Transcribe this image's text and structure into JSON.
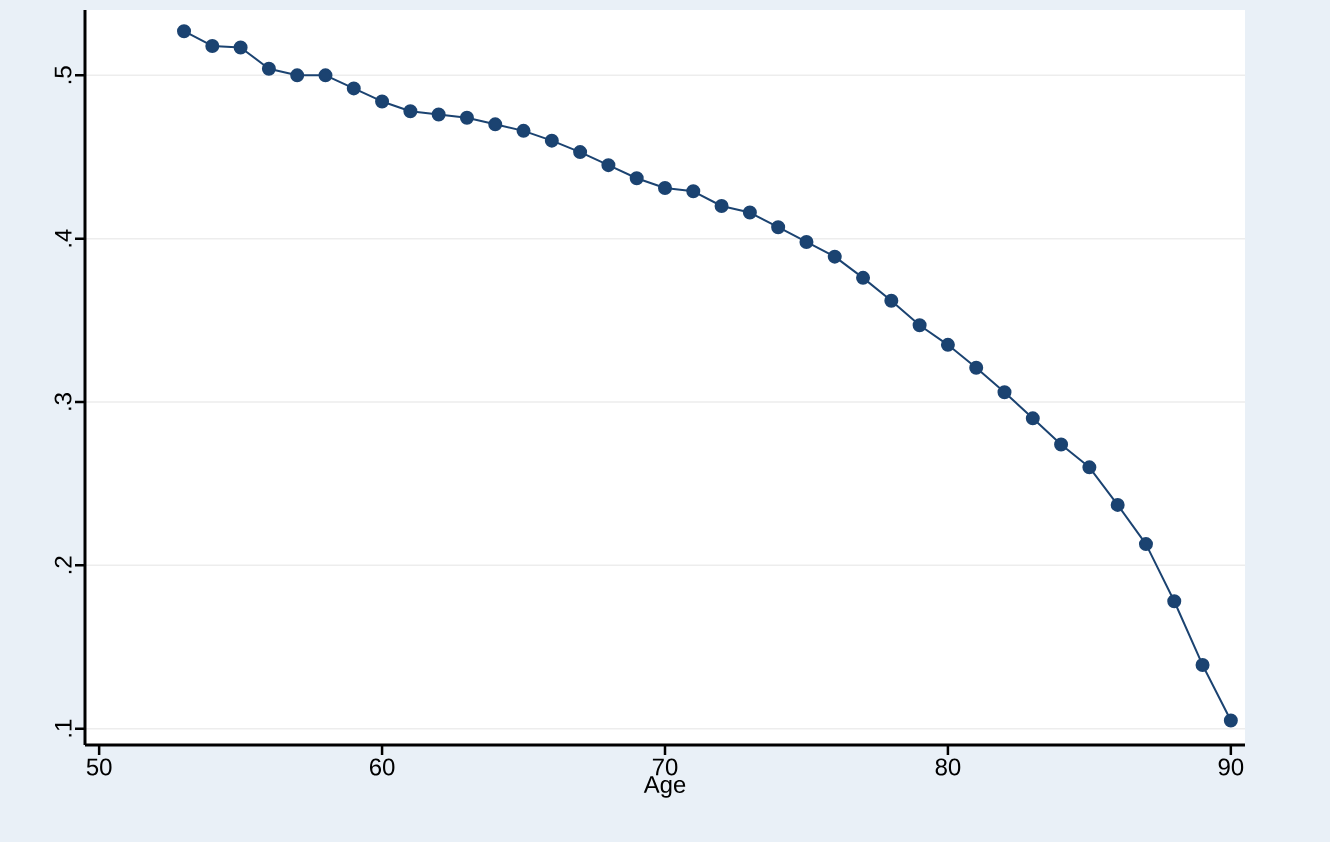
{
  "chart_data": {
    "type": "line",
    "xlabel": "Age",
    "x": [
      53,
      54,
      55,
      56,
      57,
      58,
      59,
      60,
      61,
      62,
      63,
      64,
      65,
      66,
      67,
      68,
      69,
      70,
      71,
      72,
      73,
      74,
      75,
      76,
      77,
      78,
      79,
      80,
      81,
      82,
      83,
      84,
      85,
      86,
      87,
      88,
      89,
      90
    ],
    "series": [
      {
        "color": "#1b4371",
        "values": [
          0.527,
          0.518,
          0.517,
          0.504,
          0.5,
          0.5,
          0.492,
          0.484,
          0.478,
          0.476,
          0.474,
          0.47,
          0.466,
          0.46,
          0.453,
          0.445,
          0.437,
          0.431,
          0.429,
          0.42,
          0.416,
          0.407,
          0.398,
          0.389,
          0.376,
          0.362,
          0.347,
          0.335,
          0.321,
          0.306,
          0.29,
          0.274,
          0.26,
          0.237,
          0.213,
          0.178,
          0.139,
          0.105
        ]
      }
    ],
    "xlim": [
      49.5,
      90.5
    ],
    "ylim": [
      0.09,
      0.54
    ],
    "xticks": [
      50,
      60,
      70,
      80,
      90
    ],
    "yticks": [
      {
        "value": 0.1,
        "label": ".1"
      },
      {
        "value": 0.2,
        "label": ".2"
      },
      {
        "value": 0.3,
        "label": ".3"
      },
      {
        "value": 0.4,
        "label": ".4"
      },
      {
        "value": 0.5,
        "label": ".5"
      }
    ],
    "grid": "y",
    "marker": "circle",
    "line_style": "solid"
  }
}
